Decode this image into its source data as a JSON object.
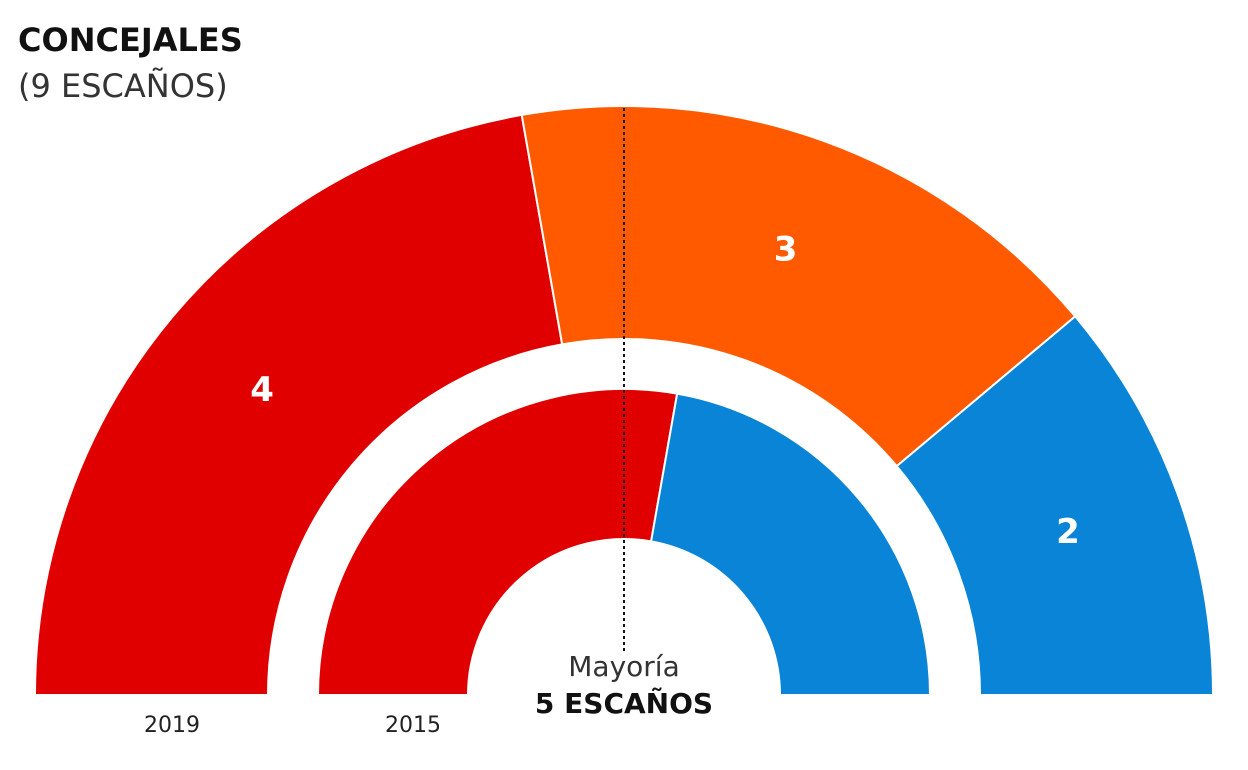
{
  "chart_data": {
    "type": "parliament",
    "title": "CONCEJALES",
    "subtitle": "(9 ESCAÑOS)",
    "series": [
      {
        "name": "2019",
        "values": [
          4,
          3,
          2
        ],
        "colors": [
          "#e10000",
          "#ff5a00",
          "#0a84d6"
        ]
      },
      {
        "name": "2015",
        "values": [
          5,
          4
        ],
        "colors": [
          "#e10000",
          "#0a84d6"
        ]
      }
    ],
    "majority": {
      "label": "Mayoría",
      "value_label": "5 ESCAÑOS"
    }
  }
}
